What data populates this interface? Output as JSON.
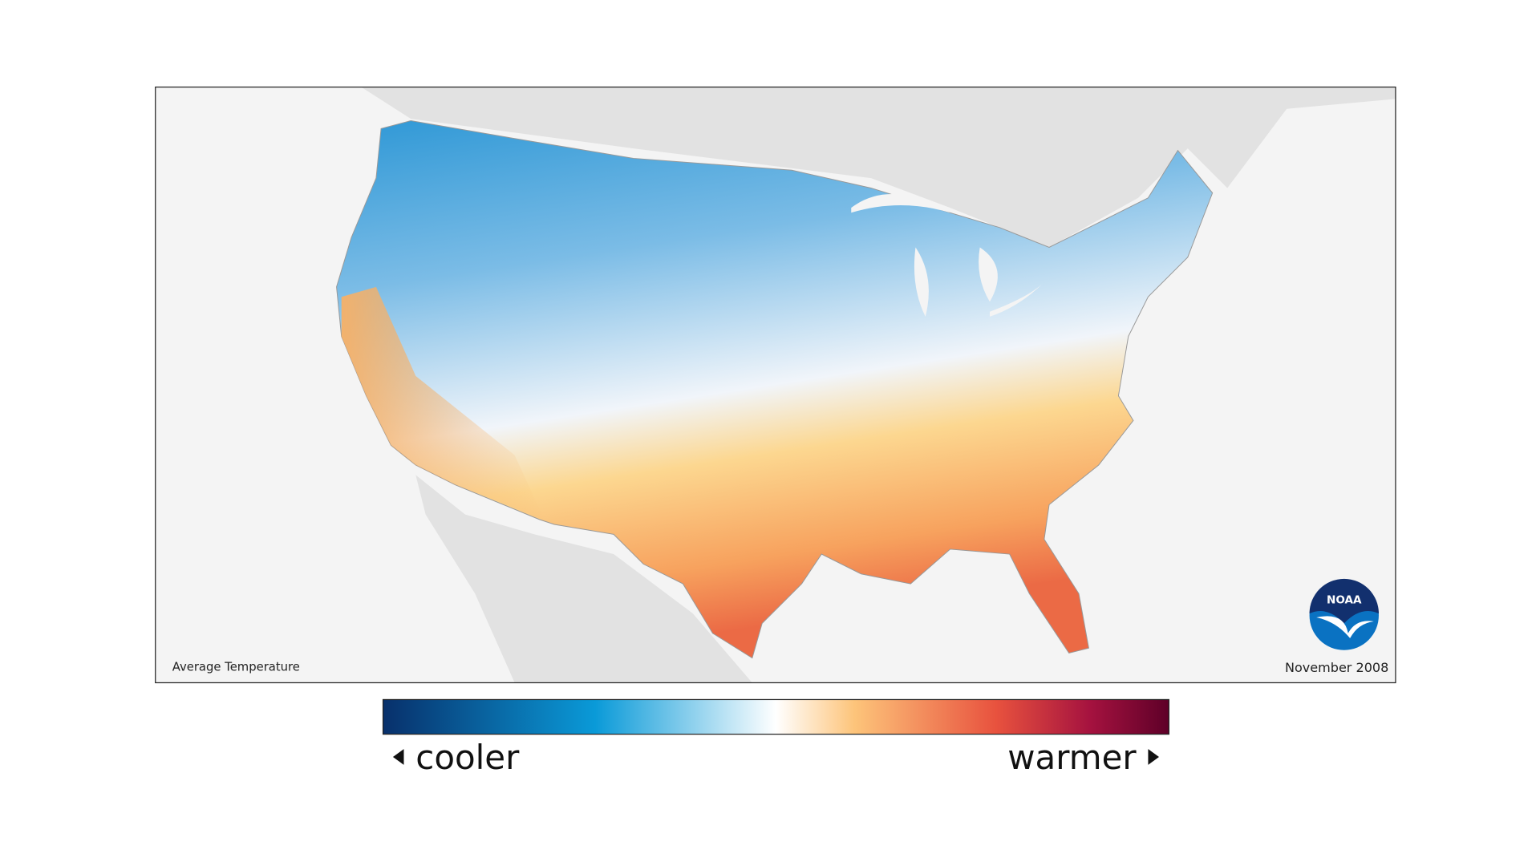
{
  "map": {
    "title": "Average Temperature",
    "date": "November 2008"
  },
  "legend": {
    "low_label": "cooler",
    "high_label": "warmer"
  },
  "logo": {
    "text": "NOAA"
  }
}
